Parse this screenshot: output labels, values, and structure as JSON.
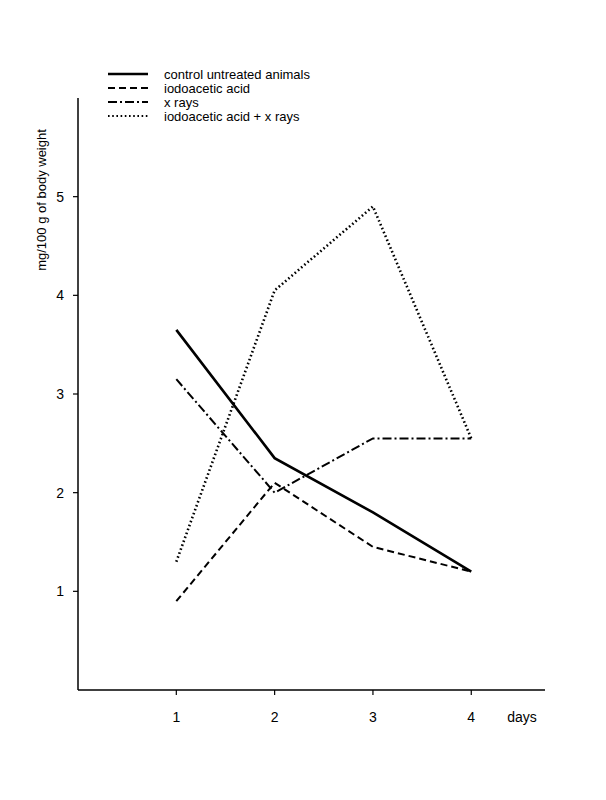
{
  "chart_data": {
    "type": "line",
    "xlabel": "days",
    "ylabel": "mg/100 g of body weight",
    "x": [
      1,
      2,
      3,
      4
    ],
    "xlim": [
      0,
      4.75
    ],
    "xticks": [
      1,
      2,
      3,
      4
    ],
    "ylim": [
      0,
      6
    ],
    "yticks": [
      1,
      2,
      3,
      4,
      5
    ],
    "grid": false,
    "legend": "upper left",
    "series": [
      {
        "name": "control untreated animals",
        "color": "#000000",
        "line_style": "solid",
        "values": [
          3.65,
          2.35,
          1.8,
          1.2
        ]
      },
      {
        "name": "iodoacetic acid",
        "color": "#000000",
        "line_style": "dashed",
        "values": [
          0.9,
          2.1,
          1.45,
          1.2
        ]
      },
      {
        "name": "x rays",
        "color": "#000000",
        "line_style": "dashdot",
        "values": [
          3.15,
          2.0,
          2.55,
          2.55
        ]
      },
      {
        "name": "iodoacetic acid + x rays",
        "color": "#000000",
        "line_style": "dotted",
        "values": [
          1.3,
          4.05,
          4.9,
          2.55
        ]
      }
    ]
  }
}
